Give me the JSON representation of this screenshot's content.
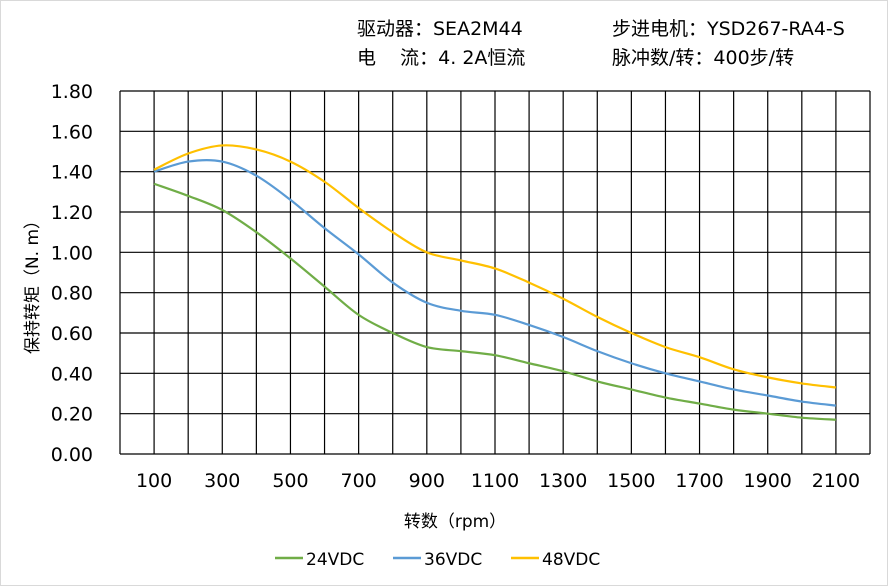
{
  "header": {
    "driver": "驱动器：SEA2M44",
    "motor": "步进电机：YSD267-RA4-S",
    "current": "电    流：4. 2A恒流",
    "pulses": "脉冲数/转：400步/转"
  },
  "chart_data": {
    "type": "line",
    "title": "",
    "xlabel": "转数（rpm）",
    "ylabel": "保持转矩（N. m）",
    "xlim": [
      0,
      2200
    ],
    "ylim": [
      0,
      1.8
    ],
    "grid": true,
    "legend_placement": "bottom",
    "x_ticks": [
      "100",
      "300",
      "500",
      "700",
      "900",
      "1100",
      "1300",
      "1500",
      "1700",
      "1900",
      "2100"
    ],
    "y_ticks": [
      "0.00",
      "0.20",
      "0.40",
      "0.60",
      "0.80",
      "1.00",
      "1.20",
      "1.40",
      "1.60",
      "1.80"
    ],
    "x": [
      100,
      200,
      300,
      400,
      500,
      600,
      700,
      800,
      900,
      1000,
      1100,
      1200,
      1300,
      1400,
      1500,
      1600,
      1700,
      1800,
      1900,
      2000,
      2100
    ],
    "series": [
      {
        "name": "24VDC",
        "color": "#70ad47",
        "values": [
          1.34,
          1.28,
          1.21,
          1.1,
          0.97,
          0.83,
          0.69,
          0.6,
          0.53,
          0.51,
          0.49,
          0.45,
          0.41,
          0.36,
          0.32,
          0.28,
          0.25,
          0.22,
          0.2,
          0.18,
          0.17
        ]
      },
      {
        "name": "36VDC",
        "color": "#5b9bd5",
        "values": [
          1.4,
          1.45,
          1.45,
          1.38,
          1.26,
          1.12,
          0.99,
          0.85,
          0.75,
          0.71,
          0.69,
          0.64,
          0.58,
          0.51,
          0.45,
          0.4,
          0.36,
          0.32,
          0.29,
          0.26,
          0.24
        ]
      },
      {
        "name": "48VDC",
        "color": "#ffc000",
        "values": [
          1.41,
          1.49,
          1.53,
          1.51,
          1.45,
          1.35,
          1.22,
          1.1,
          1.0,
          0.96,
          0.92,
          0.85,
          0.77,
          0.68,
          0.6,
          0.53,
          0.48,
          0.42,
          0.38,
          0.35,
          0.33
        ]
      }
    ]
  }
}
